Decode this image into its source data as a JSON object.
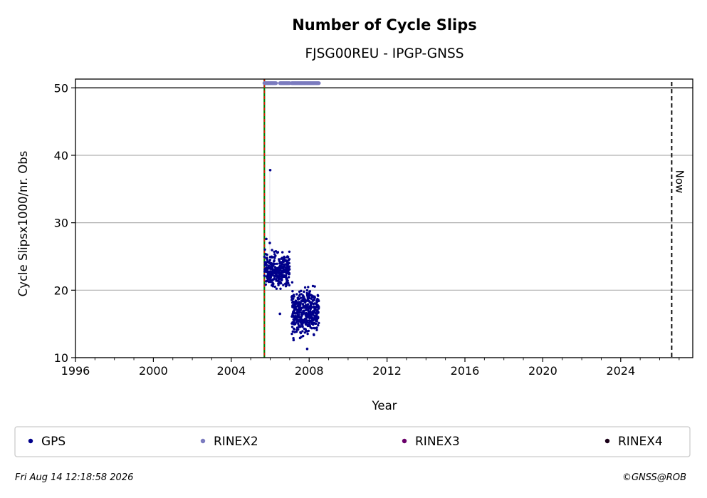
{
  "chart_data": {
    "type": "scatter",
    "title": "Number of Cycle Slips",
    "subtitle": "FJSG00REU - IPGP-GNSS",
    "xlabel": "Year",
    "ylabel": "Cycle Slipsx1000/nr. Obs",
    "xlim": [
      1996,
      2027.7
    ],
    "ylim": [
      10,
      51.3
    ],
    "xticks": [
      1996,
      2000,
      2004,
      2008,
      2012,
      2016,
      2020,
      2024
    ],
    "xtick_labels": [
      "1996",
      "2000",
      "2004",
      "2008",
      "2012",
      "2016",
      "2020",
      "2024"
    ],
    "yticks": [
      10,
      20,
      30,
      40,
      50
    ],
    "ytick_labels": [
      "10",
      "20",
      "30",
      "40",
      "50"
    ],
    "grid": "horizontal",
    "reference_line_y": 50,
    "start_marker_x": 2005.7,
    "now_marker_x": 2026.62,
    "now_label": "Now",
    "legend_placement": "below",
    "series": [
      {
        "name": "GPS",
        "color": "#00008b",
        "clusters": [
          {
            "x_range": [
              2005.7,
              2007.0
            ],
            "y_range": [
              19.5,
              26.5
            ],
            "count": 320
          },
          {
            "x_range": [
              2007.1,
              2008.5
            ],
            "y_range": [
              12.0,
              21.5
            ],
            "count": 420
          }
        ],
        "outliers": [
          {
            "x": 2006.0,
            "y": 37.8
          },
          {
            "x": 2005.8,
            "y": 27.6
          },
          {
            "x": 2005.98,
            "y": 27.0
          },
          {
            "x": 2006.5,
            "y": 16.5
          },
          {
            "x": 2007.9,
            "y": 11.3
          },
          {
            "x": 2007.2,
            "y": 12.6
          }
        ]
      },
      {
        "name": "RINEX2",
        "color": "#7b7bbf",
        "y": 50.7,
        "segments": [
          [
            2005.7,
            2006.3
          ],
          [
            2006.5,
            2007.0
          ],
          [
            2007.1,
            2008.5
          ]
        ]
      },
      {
        "name": "RINEX3",
        "color": "#6a006a"
      },
      {
        "name": "RINEX4",
        "color": "#1a0018"
      }
    ]
  },
  "footer": {
    "timestamp": "Fri Aug 14 12:18:58 2026",
    "credit": "©GNSS@ROB"
  }
}
